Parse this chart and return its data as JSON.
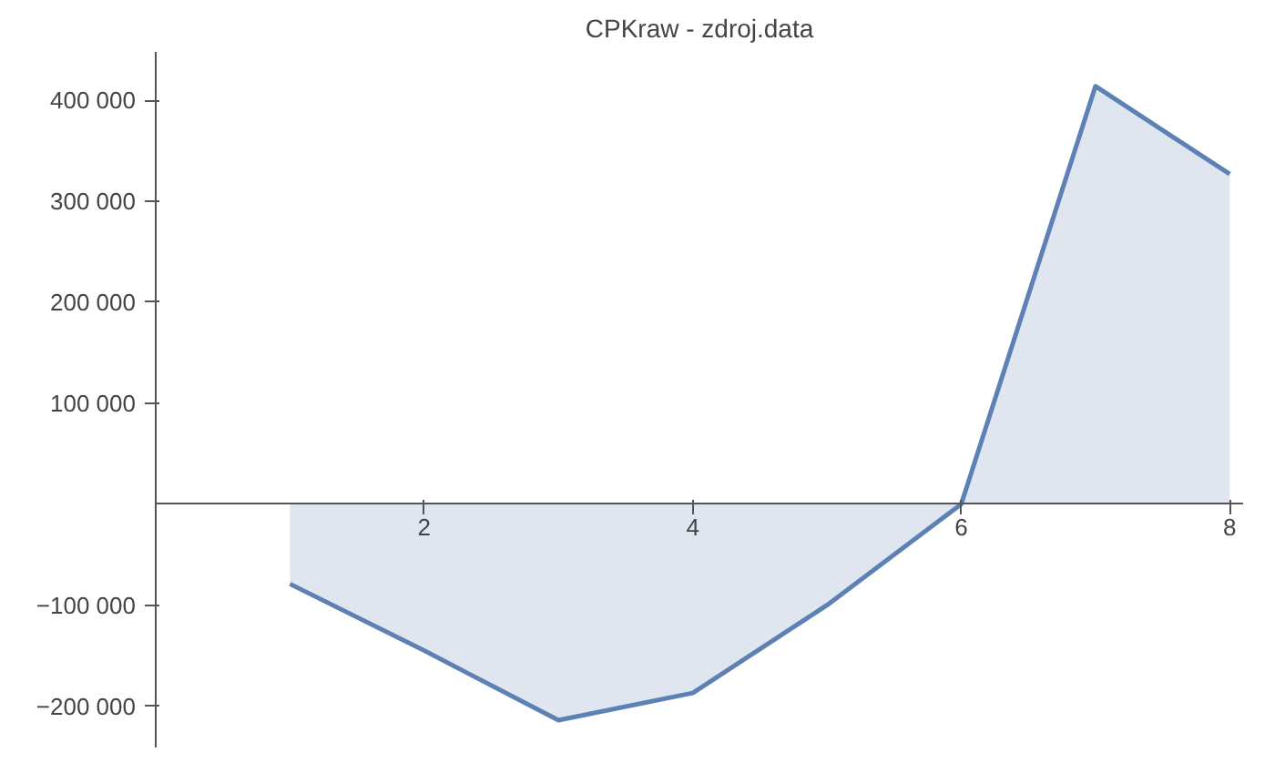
{
  "chart_data": {
    "type": "area",
    "title": "CPKraw - zdroj.data",
    "x": [
      1,
      2,
      3,
      4,
      5,
      6,
      7,
      8
    ],
    "values": [
      -79000,
      -145000,
      -214000,
      -187000,
      -100000,
      0,
      414000,
      327000
    ],
    "color": "#5e81b5",
    "xlim": [
      0,
      8.1
    ],
    "ylim": [
      -241000,
      448000
    ],
    "xticks": [
      2,
      4,
      6,
      8
    ],
    "yticks": [
      {
        "value": -200000,
        "label": "−200 000"
      },
      {
        "value": -100000,
        "label": "−100 000"
      },
      {
        "value": 100000,
        "label": "100 000"
      },
      {
        "value": 200000,
        "label": "200 000"
      },
      {
        "value": 300000,
        "label": "300 000"
      },
      {
        "value": 400000,
        "label": "400 000"
      }
    ]
  }
}
